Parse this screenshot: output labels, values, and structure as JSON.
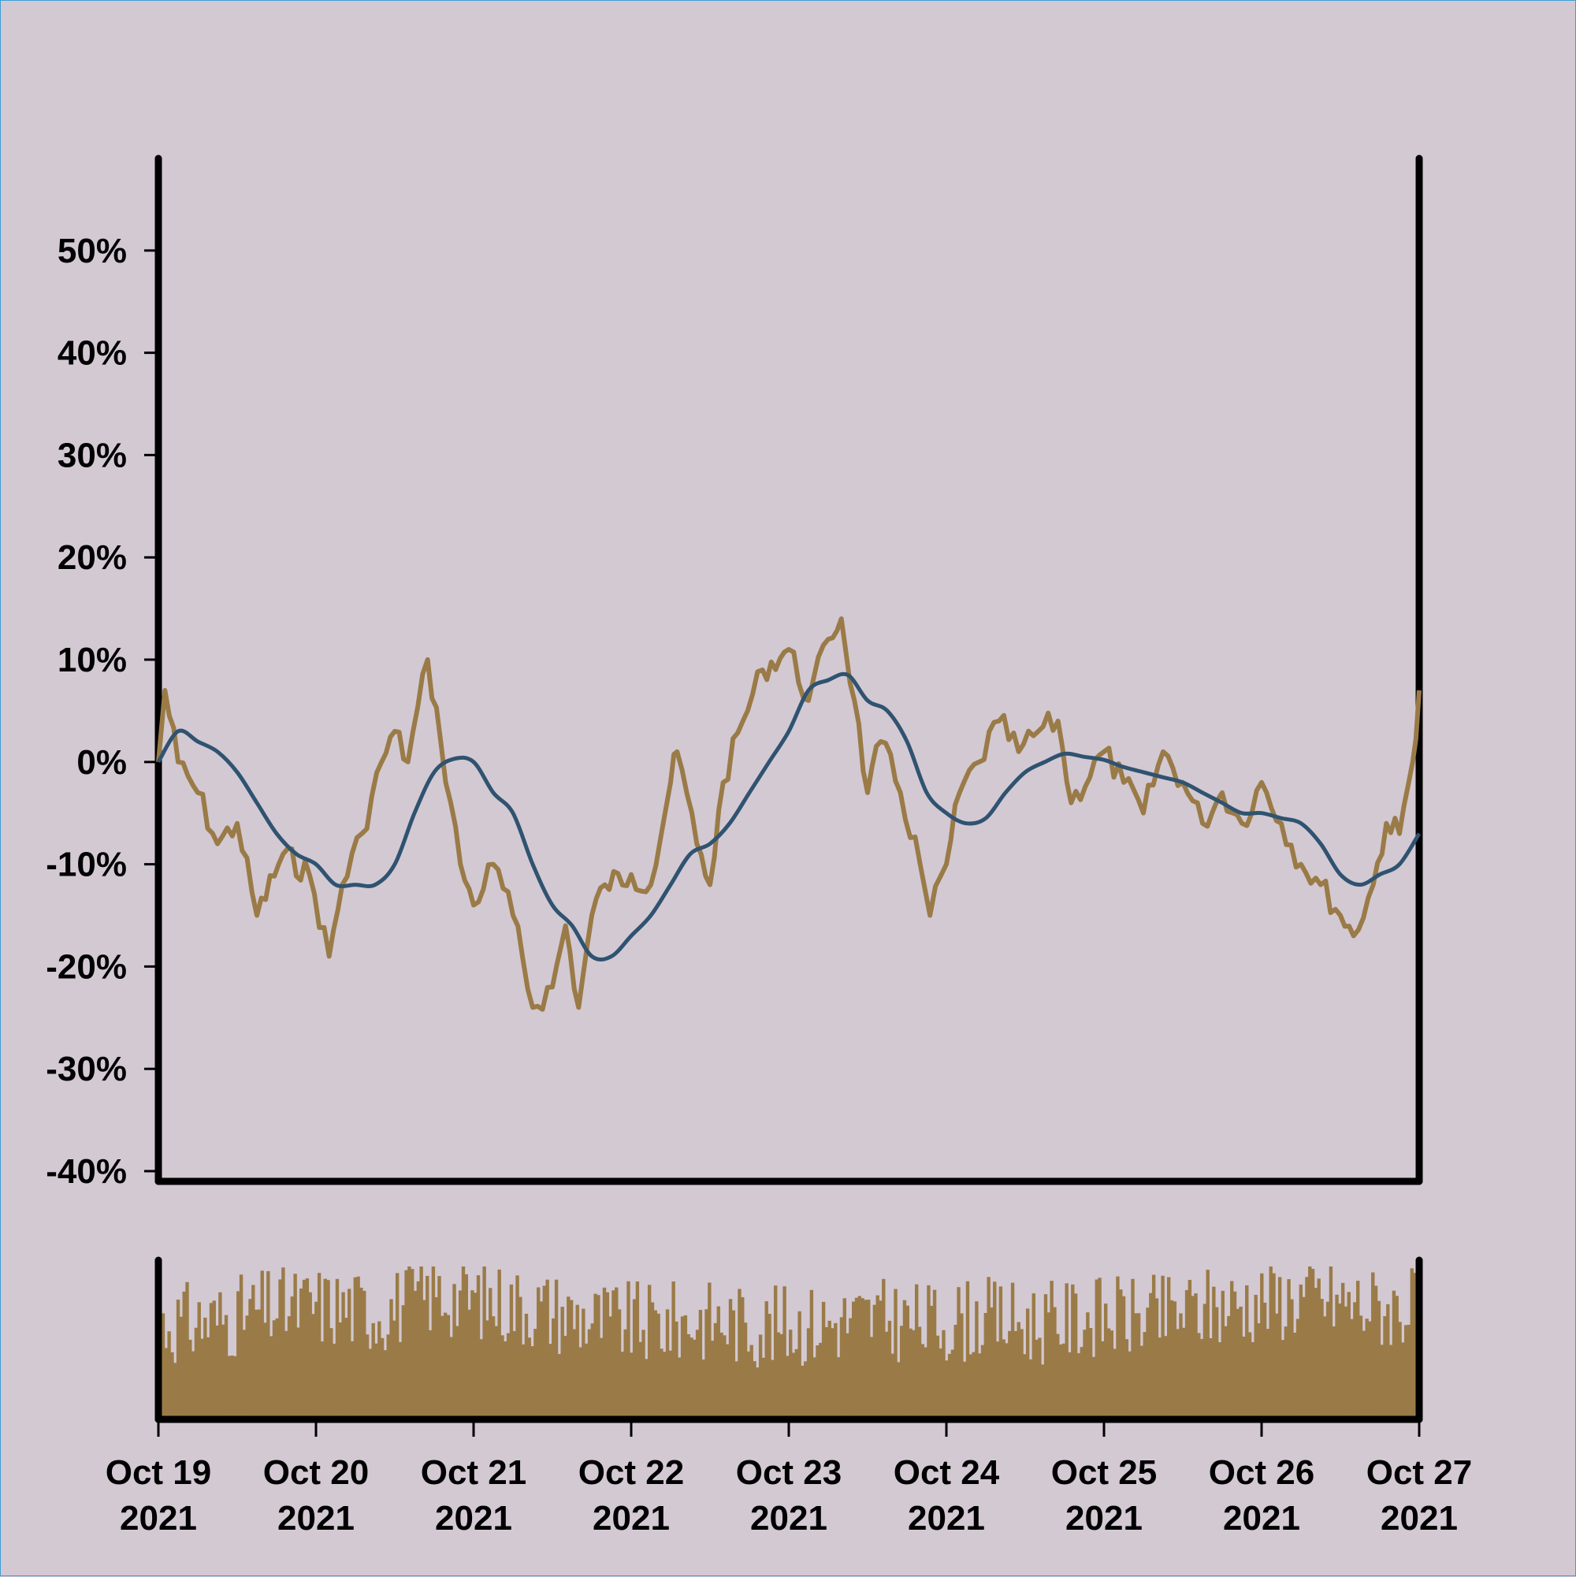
{
  "chart_data": [
    {
      "type": "line",
      "y_axis": {
        "ticks": [
          50,
          40,
          30,
          20,
          10,
          0,
          -10,
          -20,
          -30,
          -40
        ],
        "tick_labels": [
          "50%",
          "40%",
          "30%",
          "20%",
          "10%",
          "0%",
          "-10%",
          "-20%",
          "-30%",
          "-40%"
        ],
        "ylim": [
          -41,
          59
        ]
      },
      "x_axis": {
        "range": [
          "2021-10-19",
          "2021-10-27"
        ],
        "ticks": [
          "2021-10-19",
          "2021-10-20",
          "2021-10-21",
          "2021-10-22",
          "2021-10-23",
          "2021-10-24",
          "2021-10-25",
          "2021-10-26",
          "2021-10-27"
        ],
        "tick_labels_line1": [
          "Oct 19",
          "Oct 20",
          "Oct 21",
          "Oct 22",
          "Oct 23",
          "Oct 24",
          "Oct 25",
          "Oct 26",
          "Oct 27"
        ],
        "tick_labels_line2": [
          "2021",
          "2021",
          "2021",
          "2021",
          "2021",
          "2021",
          "2021",
          "2021",
          "2021"
        ]
      },
      "grid": false,
      "series": [
        {
          "color": "#9a7b47",
          "style": "jagged",
          "points": [
            [
              "2021-10-19 00:00",
              0
            ],
            [
              "2021-10-19 01:00",
              7
            ],
            [
              "2021-10-19 03:00",
              0
            ],
            [
              "2021-10-19 06:00",
              -3
            ],
            [
              "2021-10-19 09:00",
              -8
            ],
            [
              "2021-10-19 12:00",
              -6
            ],
            [
              "2021-10-19 15:00",
              -15
            ],
            [
              "2021-10-19 19:00",
              -9
            ],
            [
              "2021-10-19 23:00",
              -11
            ],
            [
              "2021-10-20 02:00",
              -19
            ],
            [
              "2021-10-20 04:00",
              -12
            ],
            [
              "2021-10-20 07:00",
              -7
            ],
            [
              "2021-10-20 10:00",
              0
            ],
            [
              "2021-10-20 12:00",
              3
            ],
            [
              "2021-10-20 14:00",
              0
            ],
            [
              "2021-10-20 17:00",
              10
            ],
            [
              "2021-10-20 19:00",
              2
            ],
            [
              "2021-10-20 22:00",
              -10
            ],
            [
              "2021-10-21 00:00",
              -14
            ],
            [
              "2021-10-21 03:00",
              -10
            ],
            [
              "2021-10-21 06:00",
              -15
            ],
            [
              "2021-10-21 09:00",
              -24
            ],
            [
              "2021-10-21 12:00",
              -22
            ],
            [
              "2021-10-21 14:00",
              -16
            ],
            [
              "2021-10-21 16:00",
              -24
            ],
            [
              "2021-10-21 18:00",
              -15
            ],
            [
              "2021-10-21 20:00",
              -12
            ],
            [
              "2021-10-22 00:00",
              -11
            ],
            [
              "2021-10-22 03:00",
              -12
            ],
            [
              "2021-10-22 06:00",
              -2
            ],
            [
              "2021-10-22 07:00",
              1
            ],
            [
              "2021-10-22 10:00",
              -8
            ],
            [
              "2021-10-22 12:00",
              -12
            ],
            [
              "2021-10-22 14:00",
              -2
            ],
            [
              "2021-10-22 17:00",
              4
            ],
            [
              "2021-10-22 20:00",
              9
            ],
            [
              "2021-10-23 00:00",
              11
            ],
            [
              "2021-10-23 03:00",
              6
            ],
            [
              "2021-10-23 06:00",
              12
            ],
            [
              "2021-10-23 08:00",
              14
            ],
            [
              "2021-10-23 10:00",
              6
            ],
            [
              "2021-10-23 12:00",
              -3
            ],
            [
              "2021-10-23 14:00",
              2
            ],
            [
              "2021-10-23 17:00",
              -3
            ],
            [
              "2021-10-23 20:00",
              -10
            ],
            [
              "2021-10-23 21:30",
              -15
            ],
            [
              "2021-10-24 00:00",
              -10
            ],
            [
              "2021-10-24 02:00",
              -3
            ],
            [
              "2021-10-24 05:00",
              0
            ],
            [
              "2021-10-24 08:00",
              4
            ],
            [
              "2021-10-24 11:00",
              1
            ],
            [
              "2021-10-24 14:00",
              3
            ],
            [
              "2021-10-24 17:00",
              4
            ],
            [
              "2021-10-24 19:00",
              -4
            ],
            [
              "2021-10-25 00:00",
              1
            ],
            [
              "2021-10-25 03:00",
              -2
            ],
            [
              "2021-10-25 06:00",
              -5
            ],
            [
              "2021-10-25 09:00",
              1
            ],
            [
              "2021-10-25 12:00",
              -2
            ],
            [
              "2021-10-25 15:00",
              -6
            ],
            [
              "2021-10-25 18:00",
              -3
            ],
            [
              "2021-10-25 21:00",
              -6
            ],
            [
              "2021-10-26 00:00",
              -2
            ],
            [
              "2021-10-26 03:00",
              -6
            ],
            [
              "2021-10-26 06:00",
              -10
            ],
            [
              "2021-10-26 09:00",
              -12
            ],
            [
              "2021-10-26 12:00",
              -15
            ],
            [
              "2021-10-26 14:00",
              -17
            ],
            [
              "2021-10-26 17:00",
              -12
            ],
            [
              "2021-10-26 19:00",
              -6
            ],
            [
              "2021-10-26 21:00",
              -7
            ],
            [
              "2021-10-26 23:00",
              0
            ],
            [
              "2021-10-27 00:00",
              7
            ]
          ]
        },
        {
          "color": "#2f5370",
          "style": "smooth",
          "points": [
            [
              "2021-10-19 00:00",
              0
            ],
            [
              "2021-10-19 03:00",
              3
            ],
            [
              "2021-10-19 06:00",
              2
            ],
            [
              "2021-10-19 09:00",
              1
            ],
            [
              "2021-10-19 12:00",
              -1
            ],
            [
              "2021-10-19 15:00",
              -4
            ],
            [
              "2021-10-19 18:00",
              -7
            ],
            [
              "2021-10-19 21:00",
              -9
            ],
            [
              "2021-10-20 00:00",
              -10
            ],
            [
              "2021-10-20 03:00",
              -12
            ],
            [
              "2021-10-20 06:00",
              -12
            ],
            [
              "2021-10-20 09:00",
              -12
            ],
            [
              "2021-10-20 12:00",
              -10
            ],
            [
              "2021-10-20 15:00",
              -5
            ],
            [
              "2021-10-20 18:00",
              -1
            ],
            [
              "2021-10-20 21:00",
              0.3
            ],
            [
              "2021-10-21 00:00",
              0
            ],
            [
              "2021-10-21 03:00",
              -3
            ],
            [
              "2021-10-21 06:00",
              -5
            ],
            [
              "2021-10-21 09:00",
              -10
            ],
            [
              "2021-10-21 12:00",
              -14
            ],
            [
              "2021-10-21 15:00",
              -16
            ],
            [
              "2021-10-21 18:00",
              -19
            ],
            [
              "2021-10-21 21:00",
              -19
            ],
            [
              "2021-10-22 00:00",
              -17
            ],
            [
              "2021-10-22 03:00",
              -15
            ],
            [
              "2021-10-22 06:00",
              -12
            ],
            [
              "2021-10-22 09:00",
              -9
            ],
            [
              "2021-10-22 12:00",
              -8
            ],
            [
              "2021-10-22 15:00",
              -6
            ],
            [
              "2021-10-22 18:00",
              -3
            ],
            [
              "2021-10-22 21:00",
              0
            ],
            [
              "2021-10-23 00:00",
              3
            ],
            [
              "2021-10-23 03:00",
              7
            ],
            [
              "2021-10-23 06:00",
              8
            ],
            [
              "2021-10-23 09:00",
              8.5
            ],
            [
              "2021-10-23 12:00",
              6
            ],
            [
              "2021-10-23 15:00",
              5
            ],
            [
              "2021-10-23 18:00",
              2
            ],
            [
              "2021-10-23 21:00",
              -3
            ],
            [
              "2021-10-24 00:00",
              -5
            ],
            [
              "2021-10-24 03:00",
              -6
            ],
            [
              "2021-10-24 06:00",
              -5.5
            ],
            [
              "2021-10-24 09:00",
              -3
            ],
            [
              "2021-10-24 12:00",
              -1
            ],
            [
              "2021-10-24 15:00",
              0
            ],
            [
              "2021-10-24 18:00",
              0.8
            ],
            [
              "2021-10-24 21:00",
              0.5
            ],
            [
              "2021-10-25 00:00",
              0.2
            ],
            [
              "2021-10-25 03:00",
              -0.5
            ],
            [
              "2021-10-25 06:00",
              -1
            ],
            [
              "2021-10-25 09:00",
              -1.5
            ],
            [
              "2021-10-25 12:00",
              -2
            ],
            [
              "2021-10-25 15:00",
              -3
            ],
            [
              "2021-10-25 18:00",
              -4
            ],
            [
              "2021-10-25 21:00",
              -5
            ],
            [
              "2021-10-26 00:00",
              -5
            ],
            [
              "2021-10-26 03:00",
              -5.5
            ],
            [
              "2021-10-26 06:00",
              -6
            ],
            [
              "2021-10-26 09:00",
              -8
            ],
            [
              "2021-10-26 12:00",
              -11
            ],
            [
              "2021-10-26 15:00",
              -12
            ],
            [
              "2021-10-26 18:00",
              -11
            ],
            [
              "2021-10-26 21:00",
              -10
            ],
            [
              "2021-10-27 00:00",
              -7
            ]
          ]
        }
      ]
    },
    {
      "type": "bar",
      "color": "#9a7b47",
      "x_axis": {
        "range": [
          "2021-10-19",
          "2021-10-27"
        ]
      },
      "bar_count": 420,
      "profile": [
        0.7,
        0.72,
        0.8,
        0.82,
        0.78,
        0.9,
        0.85,
        0.8,
        0.72,
        0.7,
        0.73,
        0.68,
        0.7,
        0.74,
        0.7,
        0.74,
        0.7,
        0.75,
        0.74,
        0.8,
        0.85,
        0.88,
        0.82,
        0.8
      ]
    }
  ]
}
